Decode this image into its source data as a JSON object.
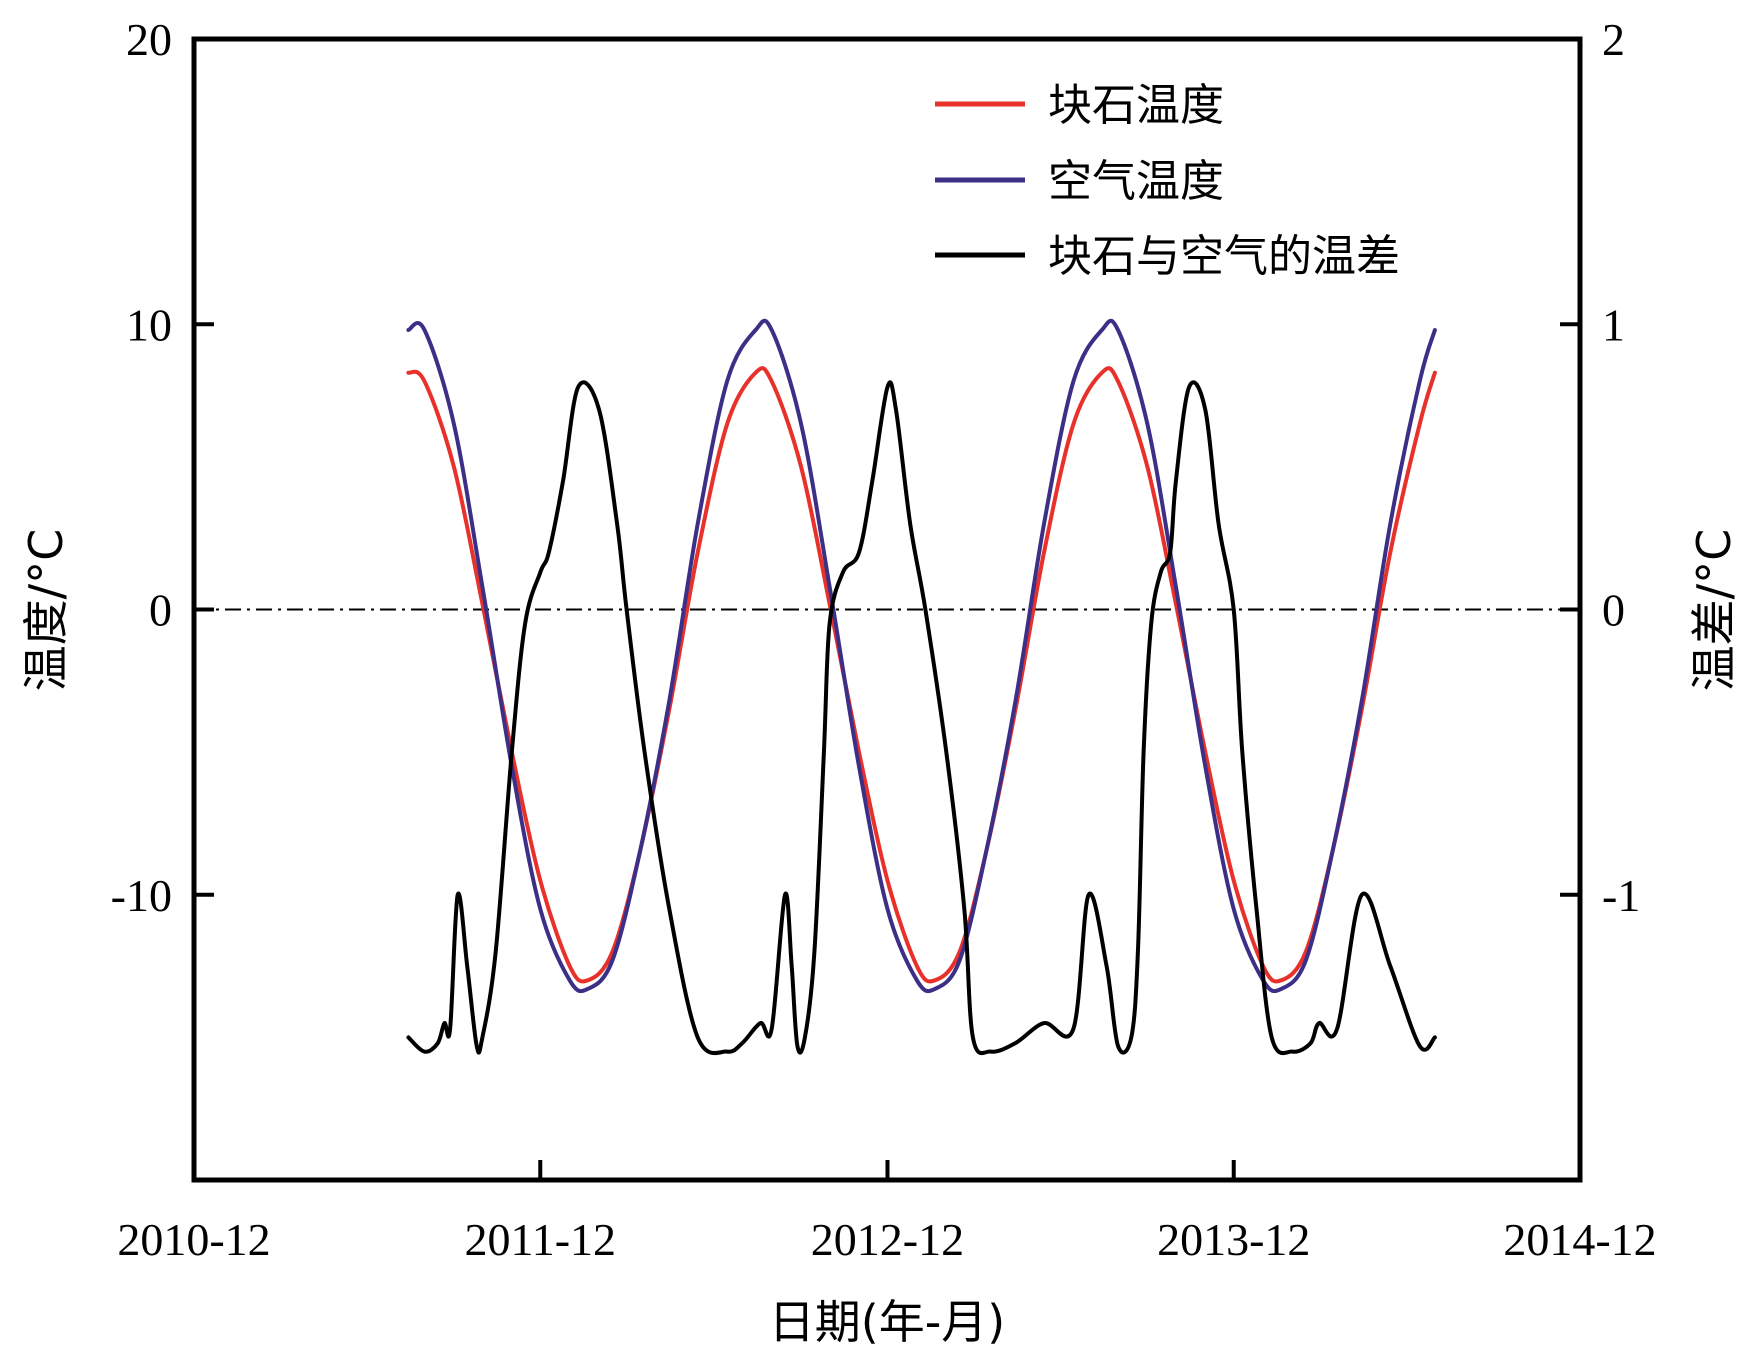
{
  "chart_data": {
    "type": "line",
    "title": "",
    "xlabel": "日期(年-月)",
    "ylabel_left": "温度/°C",
    "ylabel_right": "温差/°C",
    "xlim": [
      "2010-12",
      "2014-12"
    ],
    "x_tick_labels": [
      "2010-12",
      "2011-12",
      "2012-12",
      "2013-12",
      "2014-12"
    ],
    "ylim_left": [
      -20,
      20
    ],
    "ylim_right": [
      -2,
      2
    ],
    "y_left_tick_labels": [
      "20",
      "10",
      "0",
      "-10"
    ],
    "y_right_tick_labels": [
      "2",
      "1",
      "0",
      "-1"
    ],
    "reference_line": {
      "y": 0,
      "style": "dash-dot"
    },
    "legend_position": "top-right",
    "legend": [
      "块石温度",
      "空气温度",
      "块石与空气的温差"
    ],
    "colors": {
      "rock": "#e8312a",
      "air": "#3b2f87",
      "diff": "#000000"
    },
    "series": [
      {
        "name": "块石温度",
        "axis": "left",
        "x": [
          "2011-07-15",
          "2011-08-01",
          "2011-09-01",
          "2011-10-01",
          "2011-11-01",
          "2011-12-01",
          "2012-01-01",
          "2012-01-20",
          "2012-02-15",
          "2012-03-15",
          "2012-04-15",
          "2012-05-15",
          "2012-06-15",
          "2012-07-15",
          "2012-08-01",
          "2012-09-01",
          "2012-10-01",
          "2012-11-01",
          "2012-12-01",
          "2013-01-01",
          "2013-01-20",
          "2013-02-15",
          "2013-03-15",
          "2013-04-15",
          "2013-05-15",
          "2013-06-15",
          "2013-07-15",
          "2013-08-01",
          "2013-09-01",
          "2013-10-01",
          "2013-11-01",
          "2013-12-01",
          "2014-01-01",
          "2014-01-20",
          "2014-02-15",
          "2014-03-15",
          "2014-04-15",
          "2014-05-15",
          "2014-06-15",
          "2014-07-01"
        ],
        "values": [
          8.3,
          8.0,
          5.0,
          0.2,
          -5.0,
          -9.5,
          -12.5,
          -13.0,
          -12.0,
          -8.5,
          -3.5,
          2.0,
          6.5,
          8.3,
          8.0,
          5.0,
          0.2,
          -5.0,
          -9.5,
          -12.5,
          -13.0,
          -12.0,
          -8.5,
          -3.5,
          2.0,
          6.5,
          8.3,
          8.0,
          5.0,
          0.2,
          -5.0,
          -9.5,
          -12.5,
          -13.0,
          -12.0,
          -8.5,
          -3.5,
          2.0,
          6.5,
          8.3
        ]
      },
      {
        "name": "空气温度",
        "axis": "left",
        "x": [
          "2011-07-15",
          "2011-08-01",
          "2011-09-01",
          "2011-10-01",
          "2011-11-01",
          "2011-12-01",
          "2012-01-01",
          "2012-01-20",
          "2012-02-15",
          "2012-03-15",
          "2012-04-15",
          "2012-05-15",
          "2012-06-15",
          "2012-07-15",
          "2012-08-01",
          "2012-09-01",
          "2012-10-01",
          "2012-11-01",
          "2012-12-01",
          "2013-01-01",
          "2013-01-20",
          "2013-02-15",
          "2013-03-15",
          "2013-04-15",
          "2013-05-15",
          "2013-06-15",
          "2013-07-15",
          "2013-08-01",
          "2013-09-01",
          "2013-10-01",
          "2013-11-01",
          "2013-12-01",
          "2014-01-01",
          "2014-01-20",
          "2014-02-15",
          "2014-03-15",
          "2014-04-15",
          "2014-05-15",
          "2014-06-15",
          "2014-07-01"
        ],
        "values": [
          9.8,
          9.8,
          6.5,
          0.8,
          -5.5,
          -10.5,
          -13.0,
          -13.3,
          -12.3,
          -8.5,
          -3.2,
          3.0,
          8.0,
          9.8,
          9.8,
          6.5,
          0.8,
          -5.5,
          -10.5,
          -13.0,
          -13.3,
          -12.3,
          -8.5,
          -3.2,
          3.0,
          8.0,
          9.8,
          9.8,
          6.5,
          0.8,
          -5.5,
          -10.5,
          -13.0,
          -13.3,
          -12.3,
          -8.5,
          -3.2,
          3.0,
          8.0,
          9.8
        ]
      },
      {
        "name": "块石与空气的温差",
        "axis": "right",
        "x": [
          "2011-07-15",
          "2011-08-01",
          "2011-08-15",
          "2011-08-22",
          "2011-08-28",
          "2011-09-05",
          "2011-09-15",
          "2011-09-25",
          "2011-10-01",
          "2011-10-15",
          "2011-11-01",
          "2011-11-15",
          "2011-12-01",
          "2011-12-10",
          "2011-12-25",
          "2012-01-10",
          "2012-02-01",
          "2012-02-20",
          "2012-03-01",
          "2012-03-20",
          "2012-04-15",
          "2012-05-15",
          "2012-06-15",
          "2012-07-01",
          "2012-07-20",
          "2012-08-01",
          "2012-08-15",
          "2012-08-22",
          "2012-08-28",
          "2012-09-05",
          "2012-09-15",
          "2012-09-25",
          "2012-10-01",
          "2012-10-15",
          "2012-11-01",
          "2012-11-15",
          "2012-12-01",
          "2012-12-10",
          "2012-12-25",
          "2013-01-10",
          "2013-02-01",
          "2013-02-20",
          "2013-03-01",
          "2013-03-20",
          "2013-04-15",
          "2013-05-15",
          "2013-06-15",
          "2013-07-01",
          "2013-07-20",
          "2013-08-01",
          "2013-08-15",
          "2013-08-22",
          "2013-08-28",
          "2013-09-05",
          "2013-09-15",
          "2013-09-25",
          "2013-10-01",
          "2013-10-15",
          "2013-11-01",
          "2013-11-15",
          "2013-12-01",
          "2013-12-10",
          "2013-12-25",
          "2014-01-10",
          "2014-02-01",
          "2014-02-20",
          "2014-03-01",
          "2014-03-20",
          "2014-04-15",
          "2014-05-15",
          "2014-06-15",
          "2014-07-01"
        ],
        "values": [
          -1.5,
          -1.55,
          -1.52,
          -1.45,
          -1.47,
          -1.0,
          -1.25,
          -1.53,
          -1.5,
          -1.2,
          -0.5,
          -0.05,
          0.13,
          0.2,
          0.45,
          0.78,
          0.7,
          0.3,
          0.0,
          -0.5,
          -1.05,
          -1.5,
          -1.55,
          -1.52,
          -1.45,
          -1.47,
          -1.0,
          -1.25,
          -1.53,
          -1.5,
          -1.2,
          -0.5,
          -0.05,
          0.13,
          0.2,
          0.45,
          0.78,
          0.7,
          0.3,
          0.0,
          -0.5,
          -1.05,
          -1.5,
          -1.55,
          -1.52,
          -1.45,
          -1.47,
          -1.0,
          -1.25,
          -1.53,
          -1.5,
          -1.2,
          -0.5,
          -0.05,
          0.13,
          0.2,
          0.45,
          0.78,
          0.7,
          0.3,
          0.0,
          -0.5,
          -1.05,
          -1.5,
          -1.55,
          -1.52,
          -1.45,
          -1.47,
          -1.0,
          -1.25,
          -1.53,
          -1.5
        ]
      }
    ]
  }
}
